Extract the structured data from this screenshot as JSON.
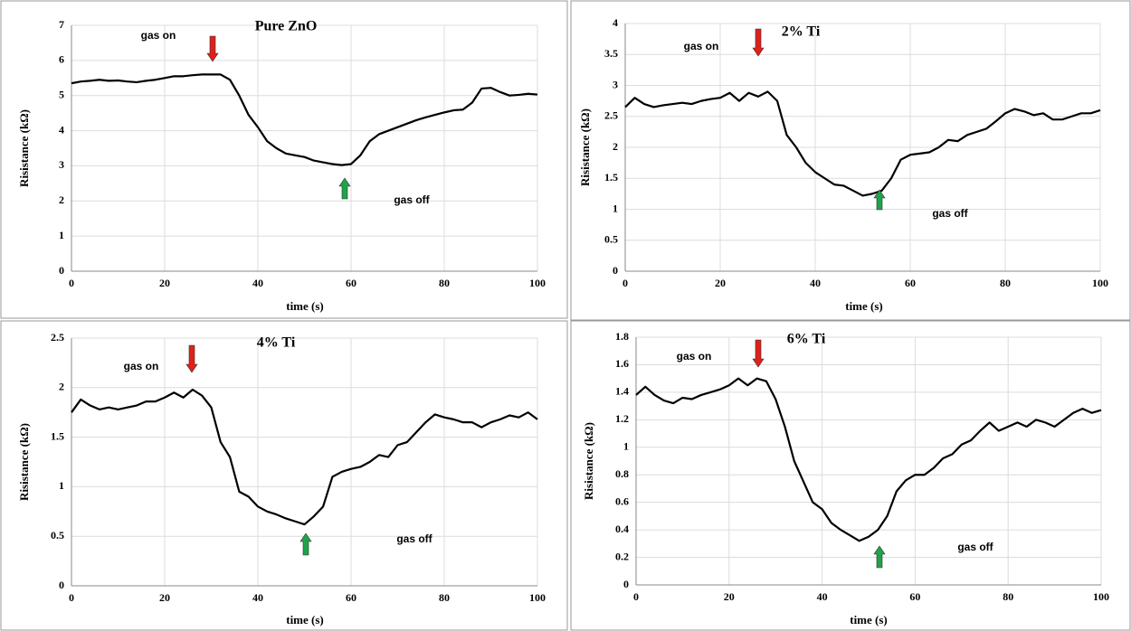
{
  "chart_data": [
    {
      "type": "line",
      "title": "Pure ZnO",
      "x_label": "time (s)",
      "y_label": "Risistance (kΩ)",
      "annotations": [
        "gas on",
        "gas off"
      ],
      "color": "#000000",
      "grid": true,
      "xlim": [
        0,
        100
      ],
      "xticks": [
        0,
        20,
        40,
        60,
        80,
        100
      ],
      "ylim": [
        0,
        7
      ],
      "yticks": [
        0,
        1,
        2,
        3,
        4,
        5,
        6,
        7
      ],
      "x": [
        0,
        2,
        4,
        6,
        8,
        10,
        12,
        14,
        16,
        18,
        20,
        22,
        24,
        26,
        28,
        30,
        32,
        34,
        36,
        38,
        40,
        42,
        44,
        46,
        48,
        50,
        52,
        54,
        56,
        58,
        60,
        62,
        64,
        66,
        68,
        70,
        72,
        74,
        76,
        78,
        80,
        82,
        84,
        86,
        88,
        90,
        92,
        94,
        96,
        98,
        100
      ],
      "values": [
        5.35,
        5.4,
        5.42,
        5.45,
        5.42,
        5.43,
        5.4,
        5.38,
        5.42,
        5.45,
        5.5,
        5.55,
        5.55,
        5.58,
        5.6,
        5.6,
        5.6,
        5.45,
        5.0,
        4.45,
        4.1,
        3.7,
        3.5,
        3.35,
        3.3,
        3.25,
        3.15,
        3.1,
        3.05,
        3.02,
        3.05,
        3.3,
        3.7,
        3.9,
        4.0,
        4.1,
        4.2,
        4.3,
        4.38,
        4.45,
        4.52,
        4.58,
        4.6,
        4.8,
        5.2,
        5.22,
        5.1,
        5.0,
        5.02,
        5.05,
        5.03
      ]
    },
    {
      "type": "line",
      "title": "2% Ti",
      "x_label": "time (s)",
      "y_label": "Risistance (kΩ)",
      "annotations": [
        "gas on",
        "gas off"
      ],
      "color": "#000000",
      "grid": true,
      "xlim": [
        0,
        100
      ],
      "xticks": [
        0,
        20,
        40,
        60,
        80,
        100
      ],
      "ylim": [
        0,
        4
      ],
      "yticks": [
        0,
        0.5,
        1,
        1.5,
        2,
        2.5,
        3,
        3.5,
        4
      ],
      "x": [
        0,
        2,
        4,
        6,
        8,
        10,
        12,
        14,
        16,
        18,
        20,
        22,
        24,
        26,
        28,
        30,
        32,
        34,
        36,
        38,
        40,
        42,
        44,
        46,
        48,
        50,
        52,
        54,
        56,
        58,
        60,
        62,
        64,
        66,
        68,
        70,
        72,
        74,
        76,
        78,
        80,
        82,
        84,
        86,
        88,
        90,
        92,
        94,
        96,
        98,
        100
      ],
      "values": [
        2.65,
        2.8,
        2.7,
        2.65,
        2.68,
        2.7,
        2.72,
        2.7,
        2.75,
        2.78,
        2.8,
        2.88,
        2.75,
        2.88,
        2.82,
        2.9,
        2.75,
        2.2,
        2.0,
        1.75,
        1.6,
        1.5,
        1.4,
        1.38,
        1.3,
        1.22,
        1.25,
        1.3,
        1.5,
        1.8,
        1.88,
        1.9,
        1.92,
        2.0,
        2.12,
        2.1,
        2.2,
        2.25,
        2.3,
        2.42,
        2.55,
        2.62,
        2.58,
        2.52,
        2.55,
        2.45,
        2.45,
        2.5,
        2.55,
        2.55,
        2.6
      ]
    },
    {
      "type": "line",
      "title": "4% Ti",
      "x_label": "time (s)",
      "y_label": "Risistance (kΩ)",
      "annotations": [
        "gas on",
        "gas off"
      ],
      "color": "#000000",
      "grid": true,
      "xlim": [
        0,
        100
      ],
      "xticks": [
        0,
        20,
        40,
        60,
        80,
        100
      ],
      "ylim": [
        0,
        2.5
      ],
      "yticks": [
        0,
        0.5,
        1,
        1.5,
        2,
        2.5
      ],
      "x": [
        0,
        2,
        4,
        6,
        8,
        10,
        12,
        14,
        16,
        18,
        20,
        22,
        24,
        26,
        28,
        30,
        32,
        34,
        36,
        38,
        40,
        42,
        44,
        46,
        48,
        50,
        52,
        54,
        56,
        58,
        60,
        62,
        64,
        66,
        68,
        70,
        72,
        74,
        76,
        78,
        80,
        82,
        84,
        86,
        88,
        90,
        92,
        94,
        96,
        98,
        100
      ],
      "values": [
        1.75,
        1.88,
        1.82,
        1.78,
        1.8,
        1.78,
        1.8,
        1.82,
        1.86,
        1.86,
        1.9,
        1.95,
        1.9,
        1.98,
        1.92,
        1.8,
        1.45,
        1.3,
        0.95,
        0.9,
        0.8,
        0.75,
        0.72,
        0.68,
        0.65,
        0.62,
        0.7,
        0.8,
        1.1,
        1.15,
        1.18,
        1.2,
        1.25,
        1.32,
        1.3,
        1.42,
        1.45,
        1.55,
        1.65,
        1.73,
        1.7,
        1.68,
        1.65,
        1.65,
        1.6,
        1.65,
        1.68,
        1.72,
        1.7,
        1.75,
        1.68
      ]
    },
    {
      "type": "line",
      "title": "6% Ti",
      "x_label": "time (s)",
      "y_label": "Risistance (kΩ)",
      "annotations": [
        "gas on",
        "gas off"
      ],
      "color": "#000000",
      "grid": true,
      "xlim": [
        0,
        100
      ],
      "xticks": [
        0,
        20,
        40,
        60,
        80,
        100
      ],
      "ylim": [
        0,
        1.8
      ],
      "yticks": [
        0,
        0.2,
        0.4,
        0.6,
        0.8,
        1,
        1.2,
        1.4,
        1.6,
        1.8
      ],
      "x": [
        0,
        2,
        4,
        6,
        8,
        10,
        12,
        14,
        16,
        18,
        20,
        22,
        24,
        26,
        28,
        30,
        32,
        34,
        36,
        38,
        40,
        42,
        44,
        46,
        48,
        50,
        52,
        54,
        56,
        58,
        60,
        62,
        64,
        66,
        68,
        70,
        72,
        74,
        76,
        78,
        80,
        82,
        84,
        86,
        88,
        90,
        92,
        94,
        96,
        98,
        100
      ],
      "values": [
        1.38,
        1.44,
        1.38,
        1.34,
        1.32,
        1.36,
        1.35,
        1.38,
        1.4,
        1.42,
        1.45,
        1.5,
        1.45,
        1.5,
        1.48,
        1.35,
        1.15,
        0.9,
        0.75,
        0.6,
        0.55,
        0.45,
        0.4,
        0.36,
        0.32,
        0.35,
        0.4,
        0.5,
        0.68,
        0.76,
        0.8,
        0.8,
        0.85,
        0.92,
        0.95,
        1.02,
        1.05,
        1.12,
        1.18,
        1.12,
        1.15,
        1.18,
        1.15,
        1.2,
        1.18,
        1.15,
        1.2,
        1.25,
        1.28,
        1.25,
        1.27
      ]
    }
  ]
}
